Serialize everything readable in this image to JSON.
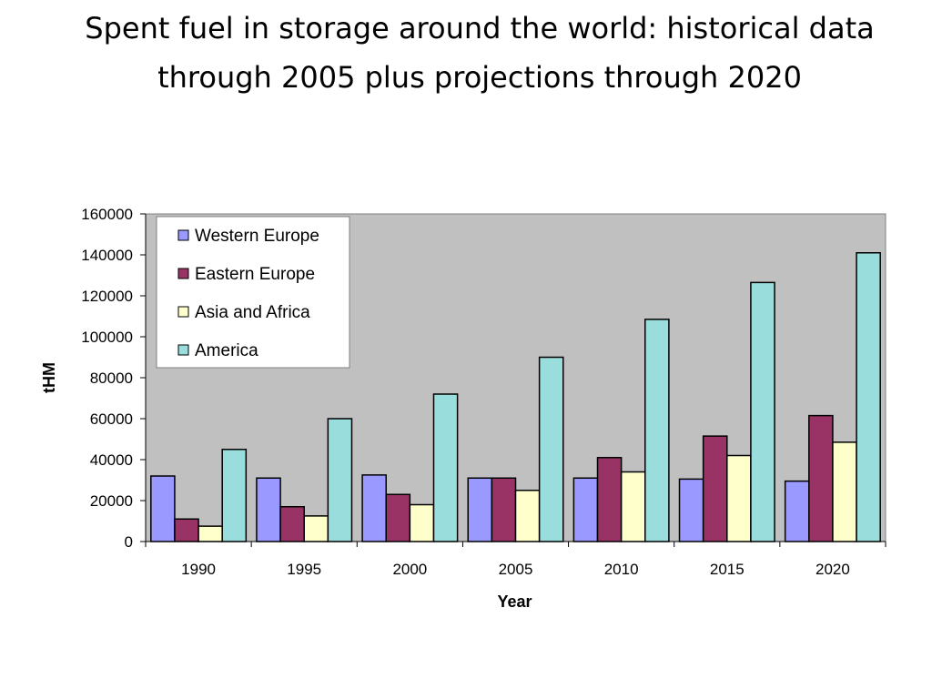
{
  "slide": {
    "title": "Spent fuel in storage around the world: historical data through 2005 plus projections through 2020"
  },
  "chart_data": {
    "type": "bar",
    "title": "",
    "xlabel": "Year",
    "ylabel": "tHM",
    "ylim": [
      0,
      160000
    ],
    "yticks": [
      0,
      20000,
      40000,
      60000,
      80000,
      100000,
      120000,
      140000,
      160000
    ],
    "categories": [
      "1990",
      "1995",
      "2000",
      "2005",
      "2010",
      "2015",
      "2020"
    ],
    "grid": false,
    "legend_position": "top-left",
    "plot_background": "#c0c0c0",
    "series": [
      {
        "name": "Western Europe",
        "color": "#9999ff",
        "values": [
          32000,
          31000,
          32500,
          31000,
          31000,
          30500,
          29500
        ]
      },
      {
        "name": "Eastern Europe",
        "color": "#993366",
        "values": [
          11000,
          17000,
          23000,
          31000,
          41000,
          51500,
          61500
        ]
      },
      {
        "name": "Asia and Africa",
        "color": "#ffffcc",
        "values": [
          7500,
          12500,
          18000,
          25000,
          34000,
          42000,
          48500
        ]
      },
      {
        "name": "America",
        "color": "#99dddd",
        "values": [
          45000,
          60000,
          72000,
          90000,
          108500,
          126500,
          141000
        ]
      }
    ]
  }
}
